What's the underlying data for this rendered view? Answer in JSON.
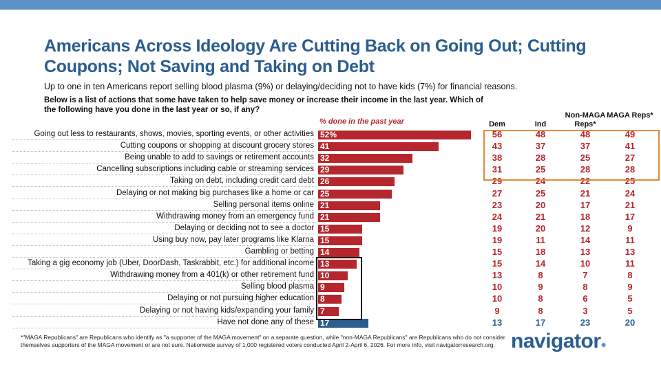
{
  "title": "Americans Across Ideology Are Cutting Back on Going Out; Cutting Coupons; Not Saving and Taking on Debt",
  "subtitle": "Up to one in ten Americans report selling blood plasma (9%) or delaying/deciding not to have kids (7%) for financial reasons.",
  "question": "Below is a list of actions that some have taken to help save money or increase their income in the last year. Which of the following have you done in the last year or so, if any?",
  "footnote": "*\"MAGA Republicans\" are Republicans who identify as \"a supporter of the MAGA movement\" on a separate question, while \"non-MAGA Republicans\" are Republicans who do not consider themselves supporters of the MAGA movement or are not sure. Nationwide survey of 1,000 registered voters conducted April 2-April 6, 2026. For more info, visit navigatorresearch.org.",
  "logo": "navigator",
  "colors": {
    "bar": "#b5262d",
    "none_bar": "#2b5d8f",
    "title": "#2b5d8f",
    "highlight_box": "#e08a3c"
  },
  "chart_data": {
    "type": "bar",
    "orientation": "horizontal",
    "xlabel": "% done in the past year",
    "xlim": [
      0,
      52
    ],
    "categories": [
      "Going out less to restaurants, shows, movies, sporting events, or other activities",
      "Cutting coupons or shopping at discount grocery stores",
      "Being unable to add to savings or retirement accounts",
      "Cancelling subscriptions including cable or streaming services",
      "Taking on debt, including credit card debt",
      "Delaying or not making big purchases like a home or car",
      "Selling personal items online",
      "Withdrawing money from an emergency fund",
      "Delaying or deciding not to see a doctor",
      "Using buy now, pay later programs like Klarna",
      "Gambling or betting",
      "Taking a gig economy job (Uber, DoorDash, Taskrabbit, etc.) for additional income",
      "Withdrawing money from a 401(k) or other retirement fund",
      "Selling blood plasma",
      "Delaying or not pursuing higher education",
      "Delaying or not having kids/expanding your family",
      "Have not done any of these"
    ],
    "values": [
      52,
      41,
      32,
      29,
      26,
      25,
      21,
      21,
      15,
      15,
      14,
      13,
      10,
      9,
      8,
      7,
      17
    ],
    "value_labels": [
      "52%",
      "41",
      "32",
      "29",
      "26",
      "25",
      "21",
      "21",
      "15",
      "15",
      "14",
      "13",
      "10",
      "9",
      "8",
      "7",
      "17"
    ],
    "table": {
      "columns": [
        "Dem",
        "Ind",
        "Non-MAGA Reps*",
        "MAGA Reps*"
      ],
      "rows": [
        [
          56,
          48,
          48,
          49
        ],
        [
          43,
          37,
          37,
          41
        ],
        [
          38,
          28,
          25,
          27
        ],
        [
          31,
          25,
          28,
          28
        ],
        [
          29,
          24,
          22,
          25
        ],
        [
          27,
          25,
          21,
          24
        ],
        [
          23,
          20,
          17,
          21
        ],
        [
          24,
          21,
          18,
          17
        ],
        [
          19,
          20,
          12,
          9
        ],
        [
          19,
          11,
          14,
          11
        ],
        [
          15,
          18,
          13,
          13
        ],
        [
          15,
          14,
          10,
          11
        ],
        [
          13,
          8,
          7,
          8
        ],
        [
          10,
          9,
          8,
          9
        ],
        [
          10,
          8,
          6,
          5
        ],
        [
          9,
          8,
          3,
          5
        ],
        [
          13,
          17,
          23,
          20
        ]
      ]
    }
  }
}
